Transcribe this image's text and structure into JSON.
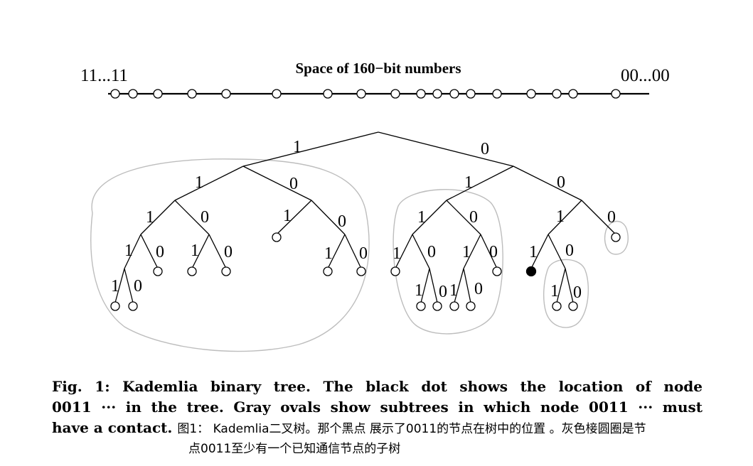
{
  "header": {
    "title": "Space of 160−bit numbers",
    "left_label": "11...11",
    "right_label": "00...00"
  },
  "edge_labels": {
    "one": "1",
    "zero": "0"
  },
  "caption": {
    "line1": "Fig. 1: Kademlia binary tree. The black dot shows the location of node",
    "line2": "0011 ··· in the tree. Gray ovals show subtrees in which node 0011 ··· must",
    "line3": "have a contact.",
    "translation_line1": "图1： Kademlia二叉树。那个黑点 展示了0011的节点在树中的位置 。灰色椄圆圈是节",
    "translation_line2": "点0011至少有一个已知通信节点的子树"
  },
  "colors": {
    "line": "#000000",
    "oval": "#bdbdbd",
    "own_node": "#000000"
  }
}
